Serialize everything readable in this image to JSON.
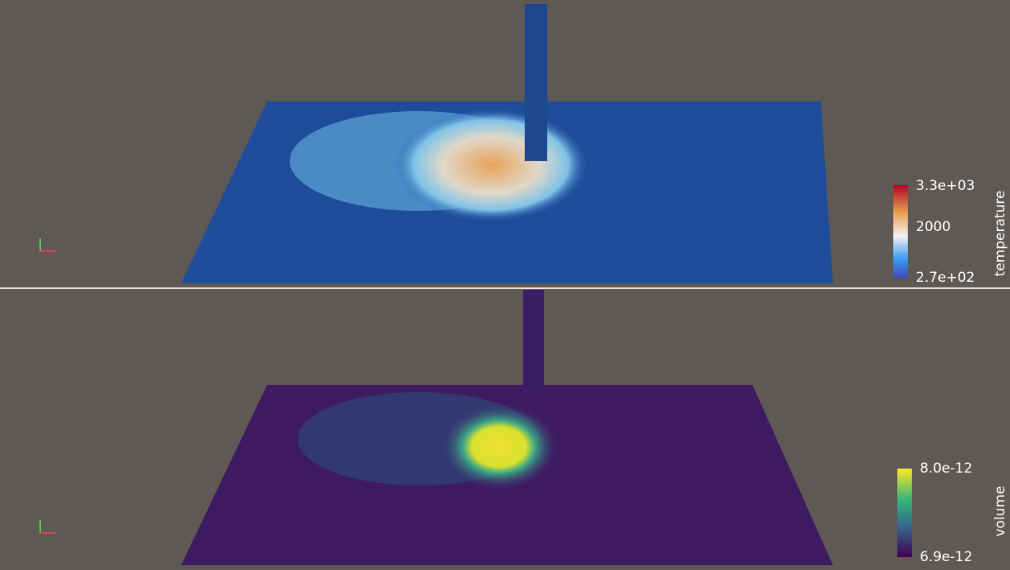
{
  "views": [
    {
      "colorbar": {
        "title": "temperature",
        "labels": [
          "3.3e+03",
          "2000",
          "2.7e+02"
        ]
      }
    },
    {
      "colorbar": {
        "title": "volume",
        "labels": [
          "8.0e-12",
          "6.9e-12"
        ]
      }
    }
  ]
}
